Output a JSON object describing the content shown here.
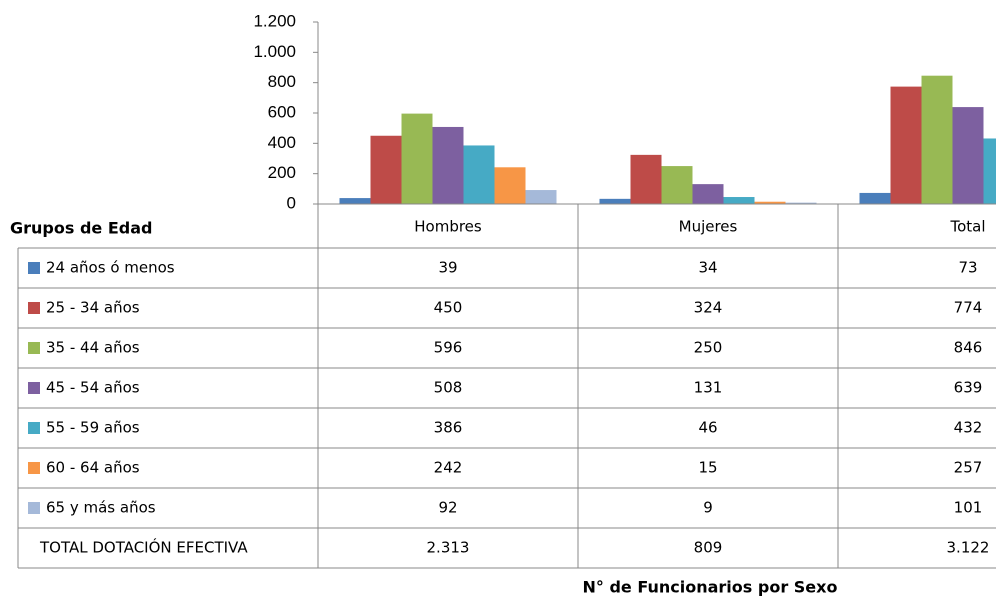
{
  "chart_data": {
    "type": "bar",
    "table_header": "Grupos de Edad",
    "x_label": "N° de Funcionarios por Sexo",
    "categories": [
      "Hombres",
      "Mujeres",
      "Total"
    ],
    "series": [
      {
        "name": "24 años ó menos",
        "color": "#4a7ebb",
        "values": [
          39,
          34,
          73
        ]
      },
      {
        "name": "25 - 34 años",
        "color": "#be4b48",
        "values": [
          450,
          324,
          774
        ]
      },
      {
        "name": "35 - 44 años",
        "color": "#98b954",
        "values": [
          596,
          250,
          846
        ]
      },
      {
        "name": "45 - 54 años",
        "color": "#7d60a0",
        "values": [
          508,
          131,
          639
        ]
      },
      {
        "name": "55 - 59 años",
        "color": "#46aac5",
        "values": [
          386,
          46,
          432
        ]
      },
      {
        "name": "60 - 64 años",
        "color": "#f79646",
        "values": [
          242,
          15,
          257
        ]
      },
      {
        "name": "65 y más años",
        "color": "#a5b9d9",
        "values": [
          92,
          9,
          101
        ]
      }
    ],
    "totals": {
      "name": "TOTAL DOTACIÓN EFECTIVA",
      "values": [
        2313,
        809,
        3122
      ],
      "value_labels": [
        "2.313",
        "809",
        "3.122"
      ]
    },
    "ylim": [
      0,
      1200
    ],
    "yticks": [
      0,
      200,
      400,
      600,
      800,
      {
        "value": 1000,
        "label": "1.000"
      },
      {
        "value": 1200,
        "label": "1.200"
      }
    ]
  }
}
